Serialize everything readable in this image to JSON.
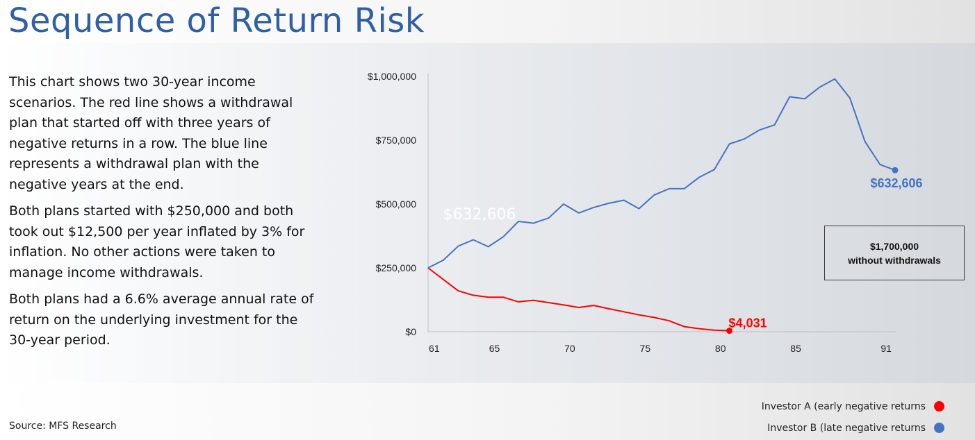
{
  "title": "Sequence of Return Risk",
  "description": [
    "This chart shows two 30-year income scenarios. The red line shows a withdrawal plan that started off with three years of negative returns in a row. The blue line represents a withdrawal plan with the negative years at the end.",
    "Both plans started with $250,000 and both took out $12,500 per year inflated by 3% for inflation. No other actions were taken to manage income withdrawals.",
    "Both plans had a 6.6% average annual rate of return on the underlying investment for the 30-year period."
  ],
  "source": "Source: MFS Research",
  "callout": {
    "line1": "$1,700,000",
    "line2": "without withdrawals"
  },
  "colors": {
    "investor_a": "#ff0000",
    "investor_b": "#4472c4",
    "title": "#2e5fa8"
  },
  "chart_data": {
    "type": "line",
    "xlim": [
      60.5,
      91.5
    ],
    "ylim": [
      0,
      1000000
    ],
    "y_ticks": [
      0,
      250000,
      500000,
      750000,
      1000000
    ],
    "y_tick_labels": [
      "$0",
      "$250,000",
      "$500,000",
      "$750,000",
      "$1,000,000"
    ],
    "x_ticks": [
      61,
      65,
      70,
      75,
      80,
      85,
      91
    ],
    "x_tick_labels": [
      "61",
      "65",
      "70",
      "75",
      "80",
      "85",
      "91"
    ],
    "series": [
      {
        "name": "Investor A (early negative returns",
        "color": "#ff0000",
        "x": [
          60.5,
          61.5,
          62.5,
          63.5,
          64.5,
          65.5,
          66.5,
          67.5,
          68.5,
          69.5,
          70.5,
          71.5,
          72.5,
          73.5,
          74.5,
          75.5,
          76.5,
          77.5,
          78.5,
          79.5,
          80.5
        ],
        "y": [
          250000,
          205000,
          160000,
          143000,
          135000,
          135000,
          117000,
          123000,
          114000,
          105000,
          95000,
          103000,
          90000,
          78000,
          66000,
          56000,
          43000,
          20000,
          12000,
          6000,
          4031
        ],
        "end_label": "$4,031"
      },
      {
        "name": "Investor B (late negative returns",
        "color": "#4472c4",
        "x": [
          60.5,
          61.5,
          62.5,
          63.5,
          64.5,
          65.5,
          66.5,
          67.5,
          68.5,
          69.5,
          70.5,
          71.5,
          72.5,
          73.5,
          74.5,
          75.5,
          76.5,
          77.5,
          78.5,
          79.5,
          80.5,
          81.5,
          82.5,
          83.5,
          84.5,
          85.5,
          86.5,
          87.5,
          88.5,
          89.5,
          90.5,
          91.5
        ],
        "y": [
          250000,
          280000,
          335000,
          360000,
          333000,
          372000,
          432000,
          425000,
          445000,
          500000,
          465000,
          487000,
          503000,
          515000,
          482000,
          535000,
          560000,
          560000,
          605000,
          635000,
          735000,
          755000,
          790000,
          810000,
          920000,
          912000,
          958000,
          990000,
          915000,
          745000,
          655000,
          632606
        ],
        "end_label": "$632,606"
      }
    ],
    "annotations": [
      "$632,606"
    ]
  }
}
